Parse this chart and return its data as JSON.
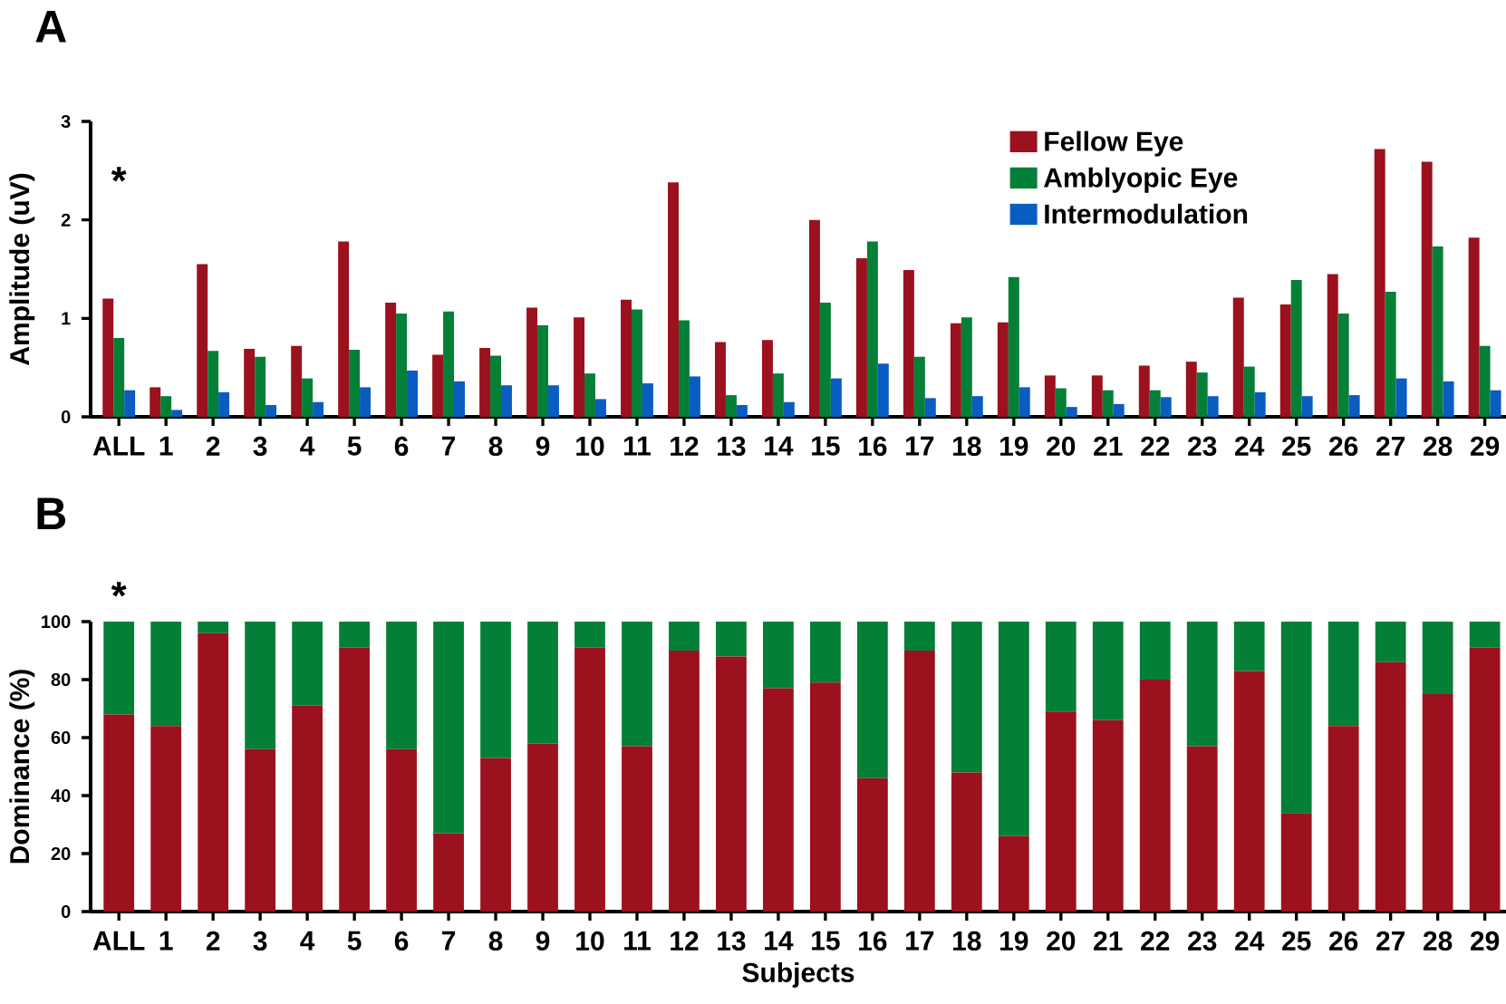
{
  "chart_data": [
    {
      "type": "bar",
      "title": "A",
      "ylabel": "Amplitude (uV)",
      "categories": [
        "ALL",
        "1",
        "2",
        "3",
        "4",
        "5",
        "6",
        "7",
        "8",
        "9",
        "10",
        "11",
        "12",
        "13",
        "14",
        "15",
        "16",
        "17",
        "18",
        "19",
        "20",
        "21",
        "22",
        "23",
        "24",
        "25",
        "26",
        "27",
        "28",
        "29"
      ],
      "series": [
        {
          "name": "Fellow Eye",
          "color": "#9b111e",
          "values": [
            1.2,
            0.3,
            1.55,
            0.69,
            0.72,
            1.78,
            1.16,
            0.63,
            0.7,
            1.11,
            1.01,
            1.19,
            2.38,
            0.76,
            0.78,
            2.0,
            1.61,
            1.49,
            0.95,
            0.96,
            0.42,
            0.42,
            0.52,
            0.56,
            1.21,
            1.14,
            1.45,
            2.72,
            2.59,
            1.82
          ]
        },
        {
          "name": "Amblyopic Eye",
          "color": "#047f38",
          "values": [
            0.8,
            0.21,
            0.67,
            0.61,
            0.39,
            0.68,
            1.05,
            1.07,
            0.62,
            0.93,
            0.44,
            1.09,
            0.98,
            0.22,
            0.44,
            1.16,
            1.78,
            0.61,
            1.01,
            1.42,
            0.29,
            0.27,
            0.27,
            0.45,
            0.51,
            1.39,
            1.05,
            1.27,
            1.73,
            0.72
          ]
        },
        {
          "name": "Intermodulation",
          "color": "#0a5cc0",
          "values": [
            0.27,
            0.07,
            0.25,
            0.12,
            0.15,
            0.3,
            0.47,
            0.36,
            0.32,
            0.32,
            0.18,
            0.34,
            0.41,
            0.12,
            0.15,
            0.39,
            0.54,
            0.19,
            0.21,
            0.3,
            0.1,
            0.13,
            0.2,
            0.21,
            0.25,
            0.21,
            0.22,
            0.39,
            0.36,
            0.27
          ]
        }
      ],
      "ylim": [
        0,
        3
      ],
      "yticks": [
        0,
        1,
        2,
        3
      ],
      "legend": "top right",
      "annotations": [
        "*"
      ]
    },
    {
      "type": "bar",
      "stacked": true,
      "title": "B",
      "xlabel": "Subjects",
      "ylabel": "Dominance (%)",
      "categories": [
        "ALL",
        "1",
        "2",
        "3",
        "4",
        "5",
        "6",
        "7",
        "8",
        "9",
        "10",
        "11",
        "12",
        "13",
        "14",
        "15",
        "16",
        "17",
        "18",
        "19",
        "20",
        "21",
        "22",
        "23",
        "24",
        "25",
        "26",
        "27",
        "28",
        "29"
      ],
      "series": [
        {
          "color": "#9b111e",
          "values": [
            68,
            64,
            96,
            56,
            71,
            91,
            56,
            27,
            53,
            58,
            91,
            57,
            90,
            88,
            77,
            79,
            46,
            90,
            48,
            26,
            69,
            66,
            80,
            57,
            83,
            34,
            64,
            86,
            75,
            91
          ]
        },
        {
          "color": "#047f38",
          "values": [
            32,
            36,
            4,
            44,
            29,
            9,
            44,
            73,
            47,
            42,
            9,
            43,
            10,
            12,
            23,
            21,
            54,
            10,
            52,
            74,
            31,
            34,
            20,
            43,
            17,
            66,
            36,
            14,
            25,
            9
          ]
        }
      ],
      "ylim": [
        0,
        100
      ],
      "yticks": [
        0,
        20,
        40,
        60,
        80,
        100
      ],
      "annotations": [
        "*"
      ]
    }
  ]
}
